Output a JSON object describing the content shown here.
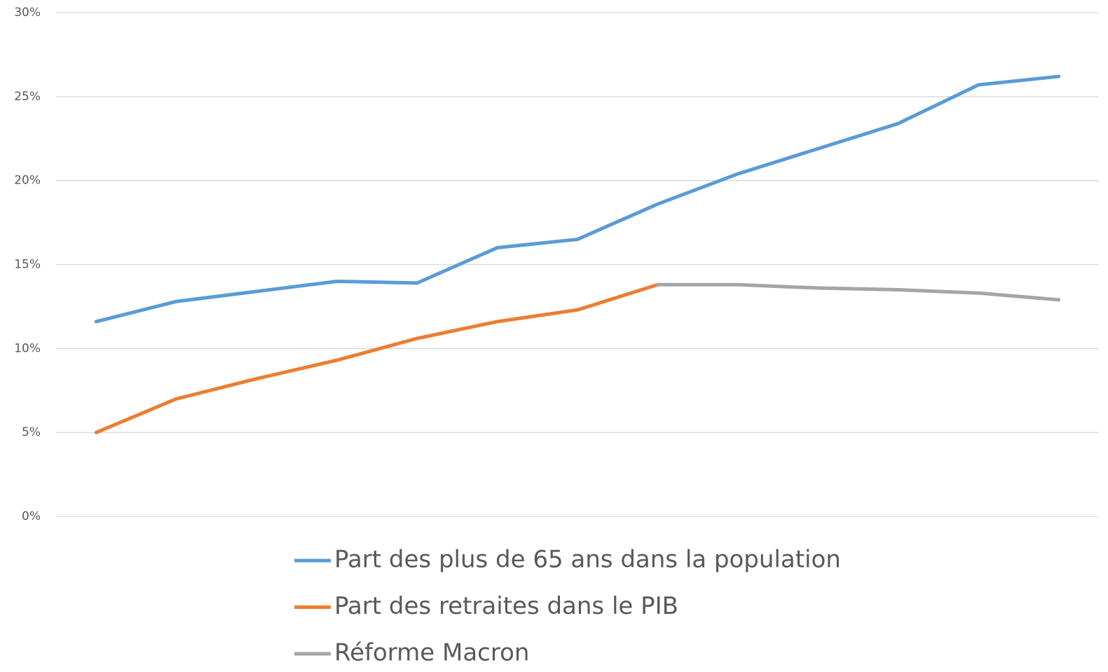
{
  "chart_data": {
    "type": "line",
    "categories": [
      null,
      null,
      null,
      null,
      null,
      null,
      null,
      null,
      null,
      null,
      null,
      null,
      null
    ],
    "series": [
      {
        "name": "Part des plus de 65 ans dans la population",
        "color": "#5b9bd5",
        "values": [
          11.6,
          12.8,
          13.4,
          14.0,
          13.9,
          16.0,
          16.5,
          18.6,
          20.4,
          21.9,
          23.4,
          25.7,
          26.2
        ]
      },
      {
        "name": "Part des retraites dans le PIB",
        "color": "#ed7d31",
        "values": [
          5.0,
          7.0,
          8.2,
          9.3,
          10.6,
          11.6,
          12.3,
          13.8,
          null,
          null,
          null,
          null,
          null
        ]
      },
      {
        "name": "Réforme Macron",
        "color": "#a5a5a5",
        "values": [
          null,
          null,
          null,
          null,
          null,
          null,
          null,
          13.8,
          13.8,
          13.6,
          13.5,
          13.3,
          12.9
        ]
      }
    ],
    "ylim": [
      0,
      30
    ],
    "yticks": [
      {
        "value": 0,
        "label": "0%"
      },
      {
        "value": 5,
        "label": "5%"
      },
      {
        "value": 10,
        "label": "10%"
      },
      {
        "value": 15,
        "label": "15%"
      },
      {
        "value": 20,
        "label": "20%"
      },
      {
        "value": 25,
        "label": "25%"
      },
      {
        "value": 30,
        "label": "30%"
      }
    ],
    "grid": true,
    "legend": "bottom"
  }
}
